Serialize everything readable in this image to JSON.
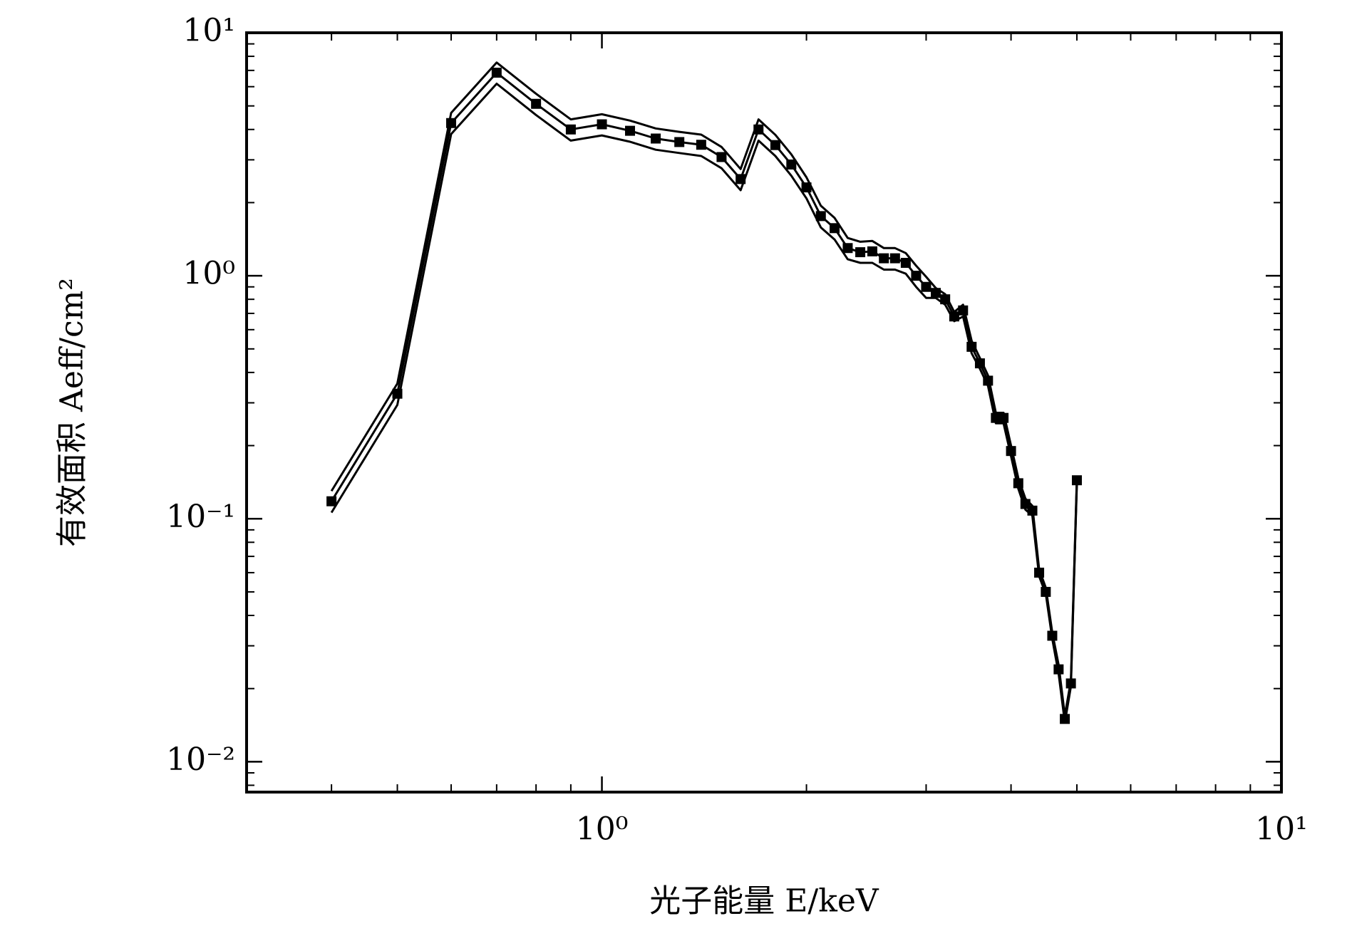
{
  "chart_data": {
    "type": "line",
    "xlabel": "光子能量 E/keV",
    "ylabel": "有效面积 Aeff/cm²",
    "xscale": "log",
    "yscale": "log",
    "xlim": [
      0.3,
      10
    ],
    "ylim": [
      0.0075,
      10
    ],
    "xticks": [
      {
        "value": 1,
        "label": "10⁰"
      },
      {
        "value": 10,
        "label": "10¹"
      }
    ],
    "yticks": [
      {
        "value": 0.01,
        "label": "10⁻²"
      },
      {
        "value": 0.1,
        "label": "10⁻¹"
      },
      {
        "value": 1,
        "label": "10⁰"
      },
      {
        "value": 10,
        "label": "10¹"
      }
    ],
    "xminorticks": [
      0.3,
      0.4,
      0.5,
      0.6,
      0.7,
      0.8,
      0.9,
      2,
      3,
      4,
      5,
      6,
      7,
      8,
      9
    ],
    "yminorticks": [
      0.008,
      0.009,
      0.02,
      0.03,
      0.04,
      0.05,
      0.06,
      0.07,
      0.08,
      0.09,
      0.2,
      0.3,
      0.4,
      0.5,
      0.6,
      0.7,
      0.8,
      0.9,
      2,
      3,
      4,
      5,
      6,
      7,
      8,
      9
    ],
    "x": [
      0.4,
      0.5,
      0.6,
      0.7,
      0.8,
      0.9,
      1.0,
      1.1,
      1.2,
      1.3,
      1.4,
      1.5,
      1.6,
      1.7,
      1.8,
      1.9,
      2.0,
      2.1,
      2.2,
      2.3,
      2.4,
      2.5,
      2.6,
      2.7,
      2.8,
      2.9,
      3.0,
      3.1,
      3.2,
      3.3,
      3.4,
      3.5,
      3.6,
      3.7,
      3.8,
      3.9,
      4.0,
      4.1,
      4.2,
      4.3,
      4.4,
      4.5,
      4.6,
      4.7,
      4.8,
      4.9,
      5.0
    ],
    "series": [
      {
        "color": "#000000",
        "marker": "square",
        "values": [
          0.118,
          0.327,
          4.25,
          6.85,
          5.1,
          4.0,
          4.2,
          3.95,
          3.67,
          3.55,
          3.46,
          3.08,
          2.5,
          4.0,
          3.45,
          2.87,
          2.31,
          1.76,
          1.57,
          1.3,
          1.25,
          1.26,
          1.18,
          1.18,
          1.13,
          1.0,
          0.9,
          0.85,
          0.8,
          0.68,
          0.72,
          0.51,
          0.436,
          0.37,
          0.26,
          0.26,
          0.19,
          0.14,
          0.115,
          0.108,
          0.06,
          0.05,
          0.033,
          0.024,
          0.015,
          0.021,
          0.144
        ]
      },
      {
        "color": "#000000",
        "values": [
          0.13,
          0.36,
          4.68,
          7.54,
          5.61,
          4.4,
          4.62,
          4.35,
          4.04,
          3.91,
          3.81,
          3.39,
          2.75,
          4.4,
          3.8,
          3.16,
          2.54,
          1.94,
          1.73,
          1.43,
          1.38,
          1.39,
          1.3,
          1.3,
          1.24,
          1.1,
          0.99,
          0.89,
          0.84,
          0.71,
          0.76,
          0.54,
          0.458,
          0.389,
          0.273,
          0.273,
          0.2,
          0.147,
          0.121,
          0.113,
          0.062,
          0.052,
          0.034,
          0.025,
          0.0155,
          0.0216,
          0.148
        ]
      },
      {
        "color": "#000000",
        "values": [
          0.106,
          0.294,
          3.83,
          6.17,
          4.59,
          3.6,
          3.78,
          3.56,
          3.3,
          3.2,
          3.11,
          2.77,
          2.25,
          3.6,
          3.11,
          2.58,
          2.08,
          1.58,
          1.41,
          1.17,
          1.13,
          1.13,
          1.06,
          1.06,
          1.02,
          0.9,
          0.81,
          0.81,
          0.76,
          0.65,
          0.68,
          0.48,
          0.414,
          0.352,
          0.247,
          0.247,
          0.181,
          0.133,
          0.109,
          0.103,
          0.058,
          0.049,
          0.032,
          0.023,
          0.0145,
          0.0204,
          0.14
        ]
      }
    ]
  }
}
